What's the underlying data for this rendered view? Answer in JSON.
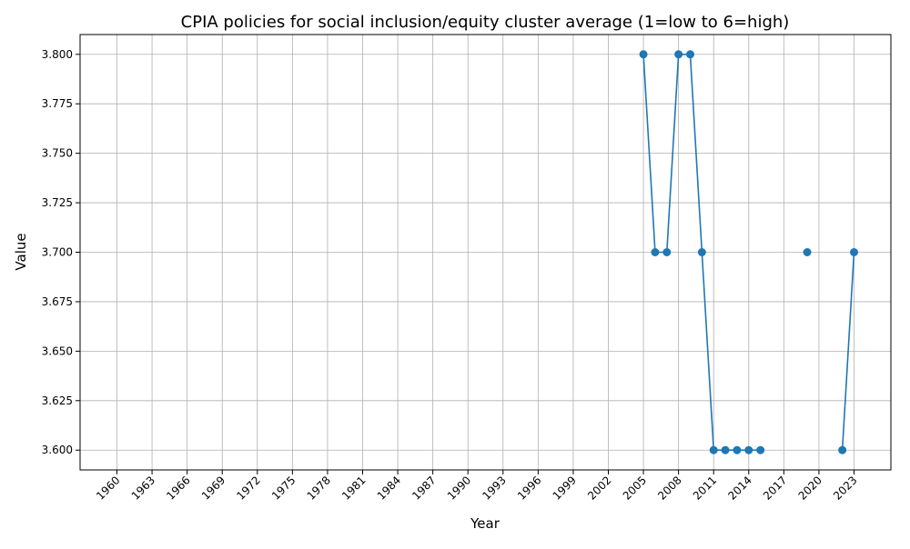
{
  "chart_data": {
    "type": "line",
    "title": "CPIA policies for social inclusion/equity cluster average (1=low to 6=high)",
    "xlabel": "Year",
    "ylabel": "Value",
    "xlim": [
      1960,
      2023
    ],
    "ylim": [
      3.59,
      3.81
    ],
    "grid": true,
    "x_ticks": [
      1960,
      1963,
      1966,
      1969,
      1972,
      1975,
      1978,
      1981,
      1984,
      1987,
      1990,
      1993,
      1996,
      1999,
      2002,
      2005,
      2008,
      2011,
      2014,
      2017,
      2020,
      2023
    ],
    "y_ticks": [
      3.6,
      3.625,
      3.65,
      3.675,
      3.7,
      3.725,
      3.75,
      3.775,
      3.8
    ],
    "y_tick_labels": [
      "3.600",
      "3.625",
      "3.650",
      "3.675",
      "3.700",
      "3.725",
      "3.750",
      "3.775",
      "3.800"
    ],
    "series": [
      {
        "color": "#1f77b4",
        "points": [
          {
            "x": 2005,
            "y": 3.8
          },
          {
            "x": 2006,
            "y": 3.7
          },
          {
            "x": 2007,
            "y": 3.7
          },
          {
            "x": 2008,
            "y": 3.8
          },
          {
            "x": 2009,
            "y": 3.8
          },
          {
            "x": 2010,
            "y": 3.7
          },
          {
            "x": 2011,
            "y": 3.6
          },
          {
            "x": 2012,
            "y": 3.6
          },
          {
            "x": 2013,
            "y": 3.6
          },
          {
            "x": 2014,
            "y": 3.6
          },
          {
            "x": 2015,
            "y": 3.6
          },
          {
            "x": 2019,
            "y": 3.7
          },
          {
            "x": 2022,
            "y": 3.6
          },
          {
            "x": 2023,
            "y": 3.7
          }
        ],
        "segments": [
          [
            0,
            10
          ],
          [
            12,
            13
          ]
        ]
      }
    ]
  }
}
